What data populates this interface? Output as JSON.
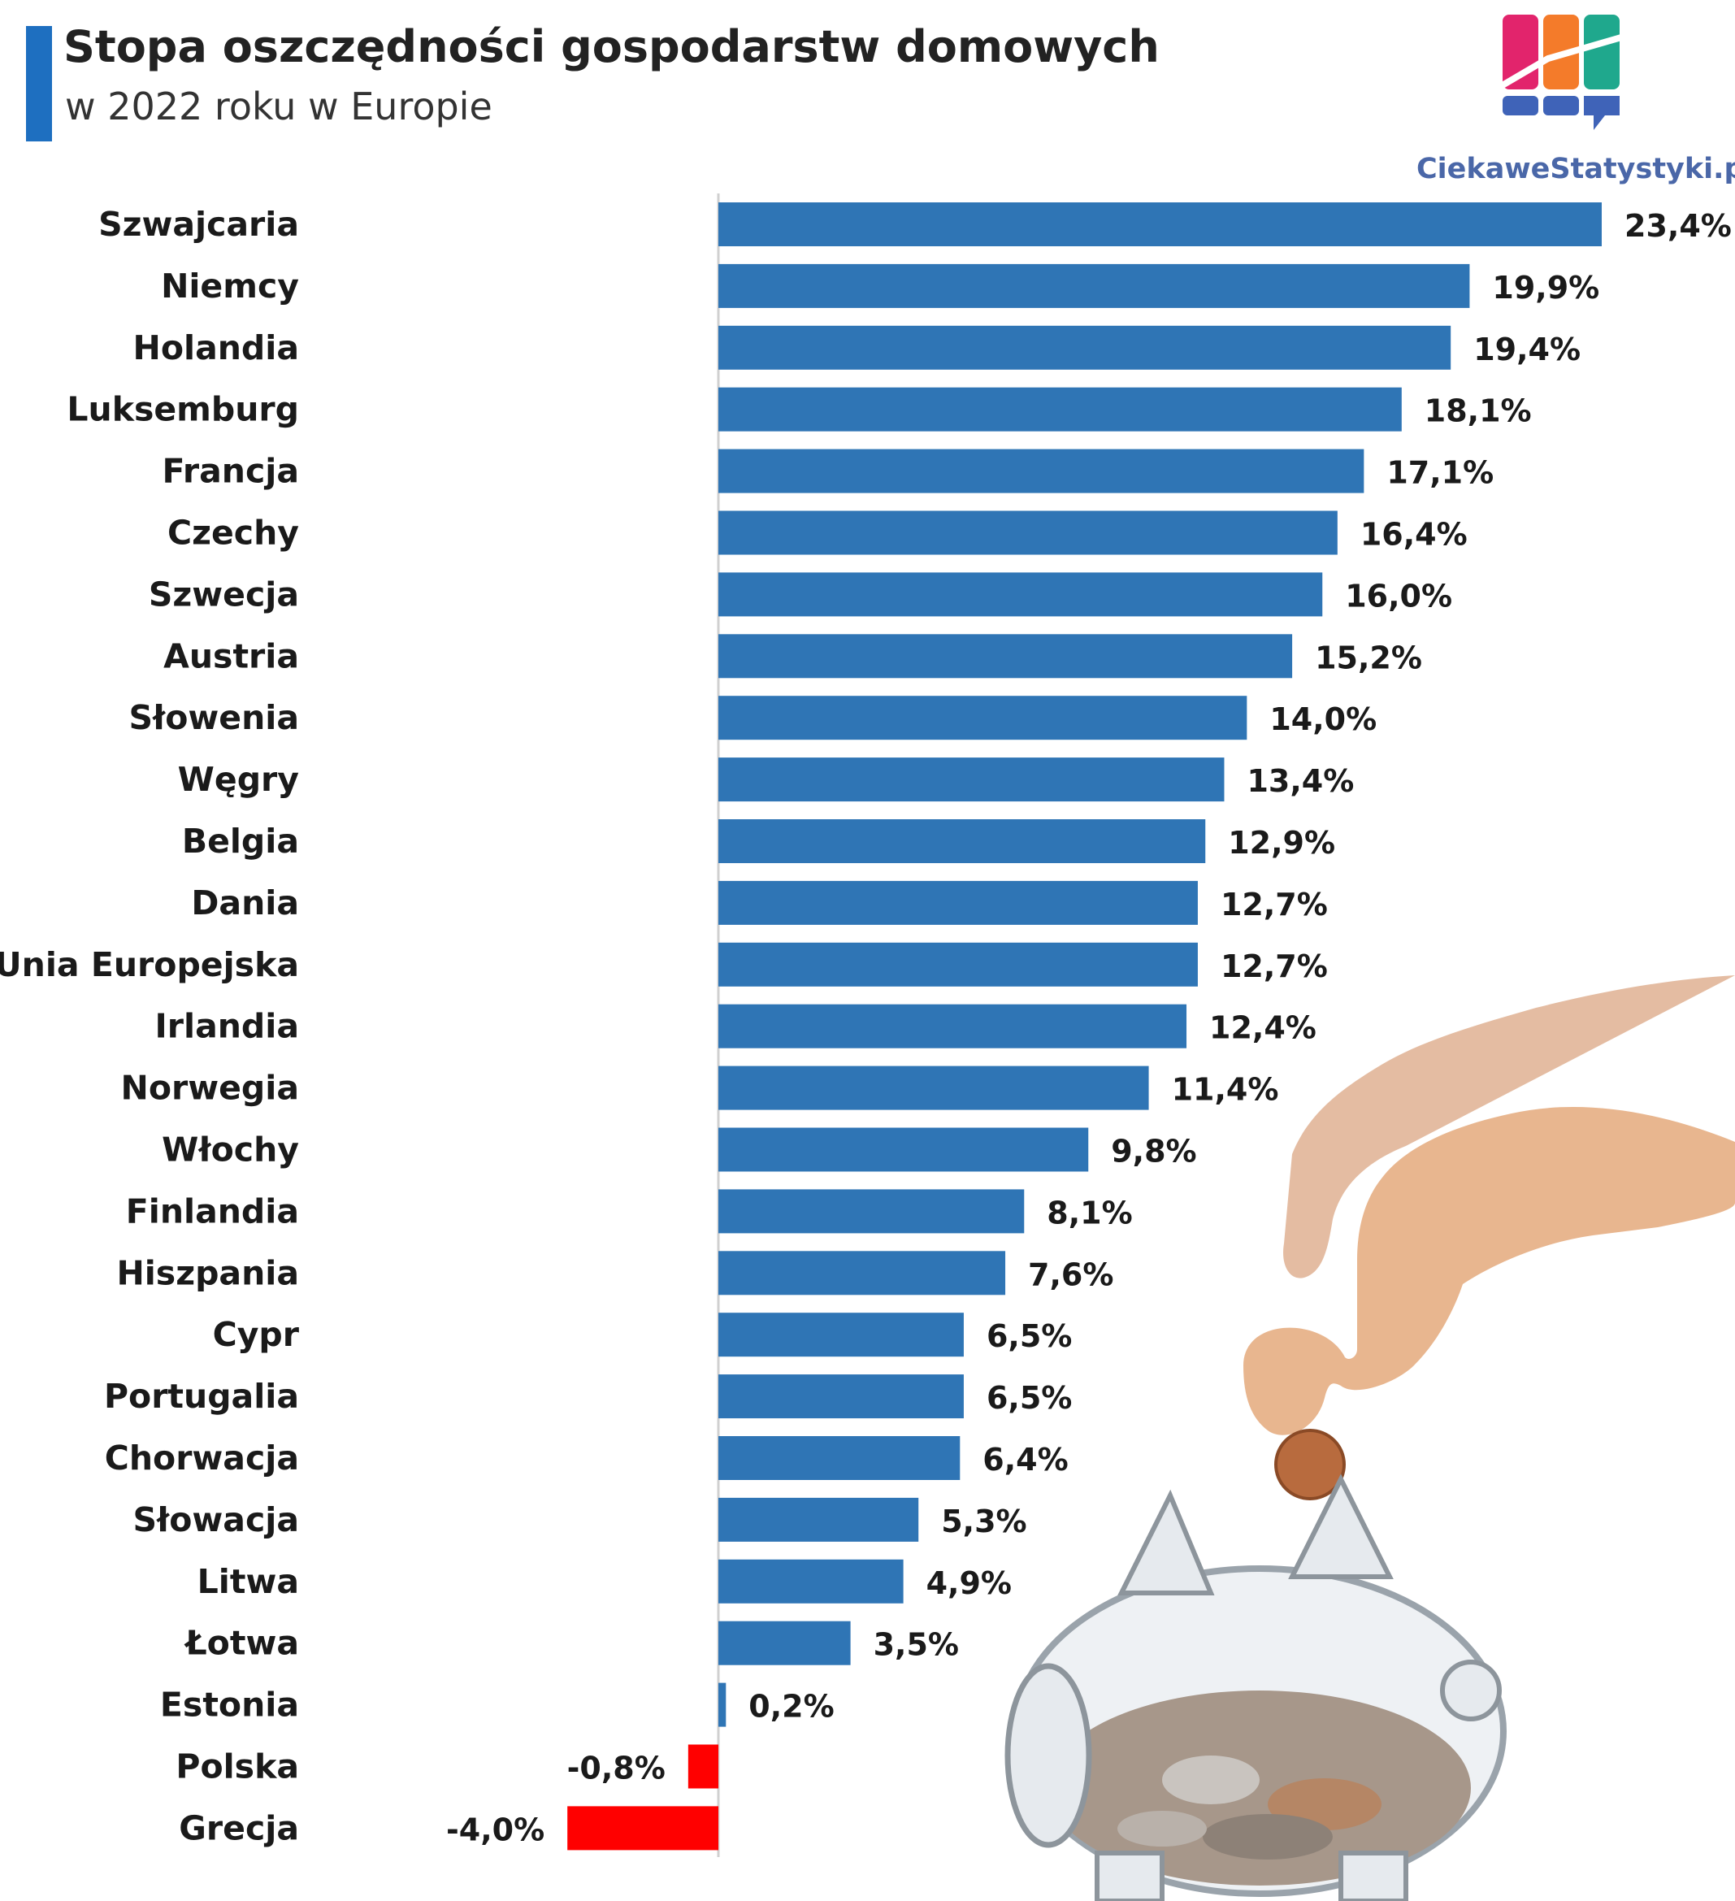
{
  "header": {
    "title": "Stopa oszczędności gospodarstw domowych",
    "subtitle": "w 2022 roku w Europie"
  },
  "brand": {
    "name": "CiekaweStatystyki.pl"
  },
  "colors": {
    "positive": "#2f75b5",
    "negative": "#ff0000",
    "accent": "#1e6fc0"
  },
  "chart_data": {
    "type": "bar",
    "orientation": "horizontal",
    "title": "Stopa oszczędności gospodarstw domowych",
    "subtitle": "w 2022 roku w Europie",
    "xlim": [
      -4.0,
      23.4
    ],
    "grid": false,
    "legend": "none",
    "categories": [
      "Szwajcaria",
      "Niemcy",
      "Holandia",
      "Luksemburg",
      "Francja",
      "Czechy",
      "Szwecja",
      "Austria",
      "Słowenia",
      "Węgry",
      "Belgia",
      "Dania",
      "Unia Europejska",
      "Irlandia",
      "Norwegia",
      "Włochy",
      "Finlandia",
      "Hiszpania",
      "Cypr",
      "Portugalia",
      "Chorwacja",
      "Słowacja",
      "Litwa",
      "Łotwa",
      "Estonia",
      "Polska",
      "Grecja"
    ],
    "values": [
      23.4,
      19.9,
      19.4,
      18.1,
      17.1,
      16.4,
      16.0,
      15.2,
      14.0,
      13.4,
      12.9,
      12.7,
      12.7,
      12.4,
      11.4,
      9.8,
      8.1,
      7.6,
      6.5,
      6.5,
      6.4,
      5.3,
      4.9,
      3.5,
      0.2,
      -0.8,
      -4.0
    ],
    "value_labels": [
      "23,4%",
      "19,9%",
      "19,4%",
      "18,1%",
      "17,1%",
      "16,4%",
      "16,0%",
      "15,2%",
      "14,0%",
      "13,4%",
      "12,9%",
      "12,7%",
      "12,7%",
      "12,4%",
      "11,4%",
      "9,8%",
      "8,1%",
      "7,6%",
      "6,5%",
      "6,5%",
      "6,4%",
      "5,3%",
      "4,9%",
      "3,5%",
      "0,2%",
      "-0,8%",
      "-4,0%"
    ]
  }
}
